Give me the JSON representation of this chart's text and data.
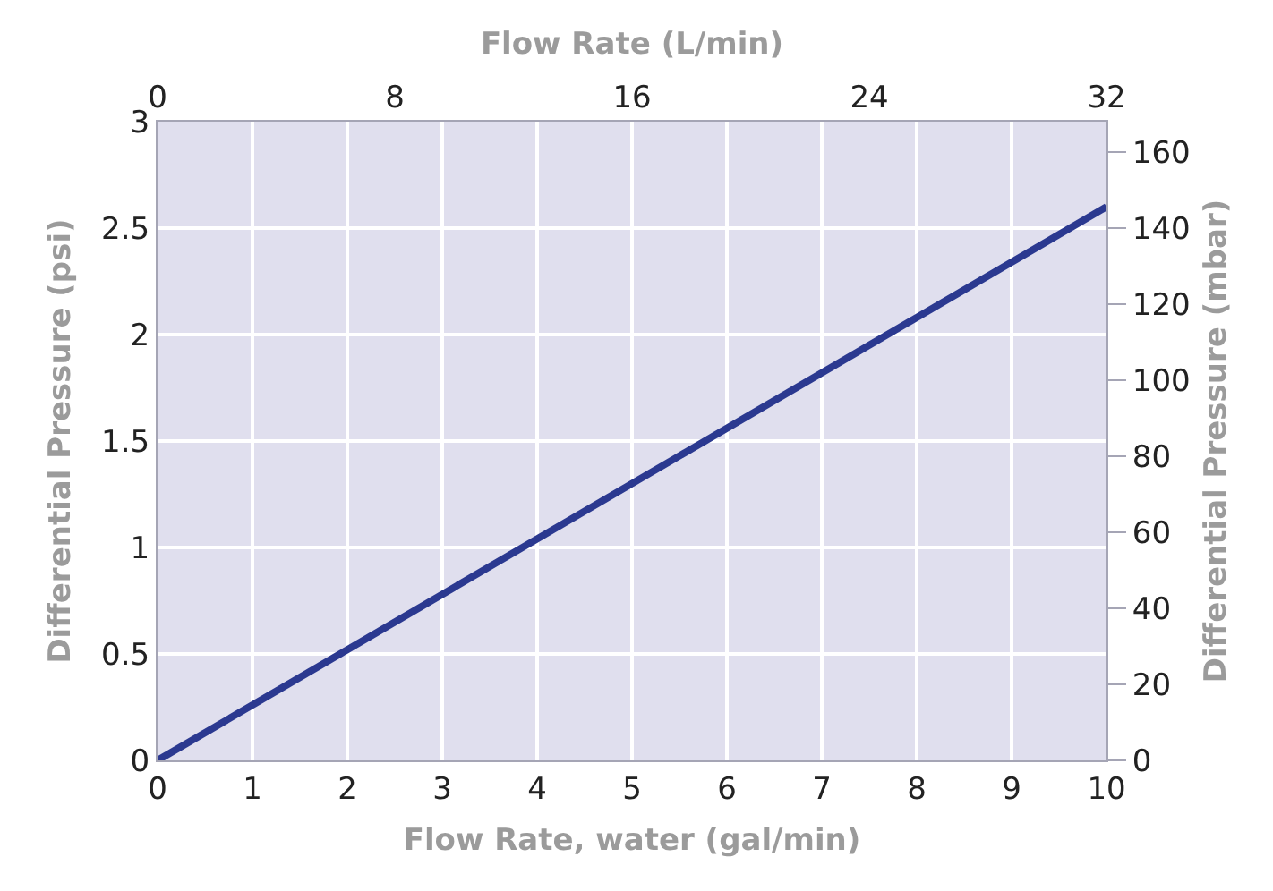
{
  "chart_data": {
    "type": "line",
    "xlabel": "Flow Rate, water (gal/min)",
    "x2label": "Flow Rate (L/min)",
    "ylabel": "Differential Pressure (psi)",
    "y2label": "Differential Pressure (mbar)",
    "x": [
      0,
      10
    ],
    "series": [
      {
        "color": "#2b3990",
        "values": [
          0,
          2.6
        ]
      }
    ],
    "xlim": [
      0,
      10
    ],
    "xticks": [
      0,
      1,
      2,
      3,
      4,
      5,
      6,
      7,
      8,
      9,
      10
    ],
    "x2lim": [
      0,
      32
    ],
    "x2ticks": [
      0,
      8,
      16,
      24,
      32
    ],
    "ylim": [
      0,
      3
    ],
    "yticks": [
      0,
      0.5,
      1,
      1.5,
      2,
      2.5,
      3
    ],
    "y2lim": [
      0,
      168
    ],
    "y2ticks": [
      0,
      20,
      40,
      60,
      80,
      100,
      120,
      140,
      160
    ],
    "grid": true,
    "marker": "none",
    "line_style": "solid"
  }
}
